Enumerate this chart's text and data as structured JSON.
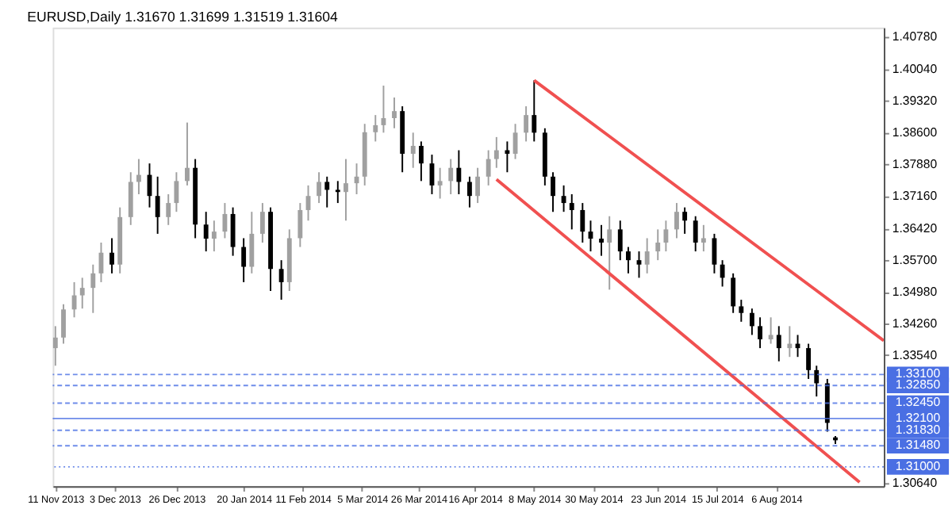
{
  "chart_data": {
    "type": "candlestick",
    "title": "EURUSD,Daily 1.31670 1.31699 1.31519 1.31604",
    "x": [
      "2013-11-11",
      "2013-11-14",
      "2013-11-18",
      "2013-11-21",
      "2013-11-25",
      "2013-11-28",
      "2013-12-02",
      "2013-12-05",
      "2013-12-09",
      "2013-12-12",
      "2013-12-16",
      "2013-12-19",
      "2013-12-23",
      "2013-12-26",
      "2013-12-30",
      "2014-01-02",
      "2014-01-06",
      "2014-01-09",
      "2014-01-13",
      "2014-01-16",
      "2014-01-20",
      "2014-01-23",
      "2014-01-27",
      "2014-01-30",
      "2014-02-03",
      "2014-02-06",
      "2014-02-10",
      "2014-02-13",
      "2014-02-17",
      "2014-02-20",
      "2014-02-24",
      "2014-02-27",
      "2014-03-03",
      "2014-03-06",
      "2014-03-10",
      "2014-03-13",
      "2014-03-17",
      "2014-03-20",
      "2014-03-24",
      "2014-03-27",
      "2014-03-31",
      "2014-04-03",
      "2014-04-07",
      "2014-04-10",
      "2014-04-14",
      "2014-04-17",
      "2014-04-21",
      "2014-04-24",
      "2014-04-28",
      "2014-05-01",
      "2014-05-05",
      "2014-05-08",
      "2014-05-12",
      "2014-05-15",
      "2014-05-19",
      "2014-05-22",
      "2014-05-26",
      "2014-05-29",
      "2014-06-02",
      "2014-06-05",
      "2014-06-09",
      "2014-06-12",
      "2014-06-16",
      "2014-06-19",
      "2014-06-23",
      "2014-06-26",
      "2014-06-30",
      "2014-07-03",
      "2014-07-07",
      "2014-07-10",
      "2014-07-14",
      "2014-07-17",
      "2014-07-21",
      "2014-07-24",
      "2014-07-28",
      "2014-07-31",
      "2014-08-04",
      "2014-08-07",
      "2014-08-11",
      "2014-08-14",
      "2014-08-18",
      "2014-08-21",
      "2014-08-25",
      "2014-08-28"
    ],
    "ohlc": [
      [
        1.337,
        1.342,
        1.333,
        1.3394
      ],
      [
        1.3394,
        1.347,
        1.338,
        1.3458
      ],
      [
        1.3458,
        1.352,
        1.344,
        1.349
      ],
      [
        1.349,
        1.353,
        1.346,
        1.3507
      ],
      [
        1.3507,
        1.356,
        1.345,
        1.354
      ],
      [
        1.354,
        1.361,
        1.352,
        1.3587
      ],
      [
        1.3587,
        1.362,
        1.354,
        1.356
      ],
      [
        1.356,
        1.369,
        1.354,
        1.3668
      ],
      [
        1.3668,
        1.377,
        1.365,
        1.3748
      ],
      [
        1.3748,
        1.38,
        1.372,
        1.3764
      ],
      [
        1.3764,
        1.379,
        1.369,
        1.3716
      ],
      [
        1.3716,
        1.376,
        1.363,
        1.3668
      ],
      [
        1.3668,
        1.372,
        1.365,
        1.37
      ],
      [
        1.37,
        1.377,
        1.368,
        1.375
      ],
      [
        1.375,
        1.3883,
        1.374,
        1.378
      ],
      [
        1.378,
        1.38,
        1.362,
        1.3651
      ],
      [
        1.3651,
        1.368,
        1.359,
        1.3619
      ],
      [
        1.3619,
        1.366,
        1.359,
        1.3635
      ],
      [
        1.3635,
        1.37,
        1.362,
        1.3675
      ],
      [
        1.3675,
        1.369,
        1.358,
        1.36
      ],
      [
        1.36,
        1.362,
        1.352,
        1.3555
      ],
      [
        1.3555,
        1.368,
        1.354,
        1.363
      ],
      [
        1.363,
        1.37,
        1.361,
        1.368
      ],
      [
        1.368,
        1.369,
        1.35,
        1.355
      ],
      [
        1.355,
        1.357,
        1.348,
        1.352
      ],
      [
        1.352,
        1.364,
        1.35,
        1.362
      ],
      [
        1.362,
        1.37,
        1.36,
        1.3684
      ],
      [
        1.3684,
        1.374,
        1.366,
        1.3716
      ],
      [
        1.3716,
        1.377,
        1.37,
        1.3748
      ],
      [
        1.3748,
        1.376,
        1.369,
        1.373
      ],
      [
        1.373,
        1.375,
        1.37,
        1.3725
      ],
      [
        1.3725,
        1.38,
        1.366,
        1.3745
      ],
      [
        1.3745,
        1.379,
        1.372,
        1.376
      ],
      [
        1.376,
        1.388,
        1.374,
        1.3861
      ],
      [
        1.3861,
        1.39,
        1.384,
        1.3877
      ],
      [
        1.3877,
        1.3967,
        1.386,
        1.3893
      ],
      [
        1.3893,
        1.394,
        1.387,
        1.3909
      ],
      [
        1.3909,
        1.392,
        1.377,
        1.3812
      ],
      [
        1.3812,
        1.386,
        1.378,
        1.383
      ],
      [
        1.383,
        1.384,
        1.375,
        1.379
      ],
      [
        1.379,
        1.381,
        1.372,
        1.374
      ],
      [
        1.374,
        1.378,
        1.371,
        1.375
      ],
      [
        1.375,
        1.38,
        1.372,
        1.378
      ],
      [
        1.378,
        1.382,
        1.372,
        1.3748
      ],
      [
        1.3748,
        1.376,
        1.369,
        1.3716
      ],
      [
        1.3716,
        1.378,
        1.37,
        1.376
      ],
      [
        1.376,
        1.382,
        1.374,
        1.38
      ],
      [
        1.38,
        1.385,
        1.378,
        1.382
      ],
      [
        1.382,
        1.384,
        1.377,
        1.3812
      ],
      [
        1.3812,
        1.388,
        1.38,
        1.386
      ],
      [
        1.386,
        1.392,
        1.384,
        1.39
      ],
      [
        1.39,
        1.3979,
        1.384,
        1.386
      ],
      [
        1.386,
        1.387,
        1.374,
        1.376
      ],
      [
        1.376,
        1.377,
        1.368,
        1.3716
      ],
      [
        1.3716,
        1.374,
        1.368,
        1.37
      ],
      [
        1.37,
        1.372,
        1.364,
        1.3684
      ],
      [
        1.3684,
        1.37,
        1.361,
        1.3635
      ],
      [
        1.3635,
        1.366,
        1.359,
        1.3619
      ],
      [
        1.3619,
        1.365,
        1.358,
        1.361
      ],
      [
        1.361,
        1.367,
        1.3503,
        1.364
      ],
      [
        1.364,
        1.366,
        1.357,
        1.359
      ],
      [
        1.359,
        1.36,
        1.354,
        1.357
      ],
      [
        1.357,
        1.359,
        1.353,
        1.356
      ],
      [
        1.356,
        1.362,
        1.354,
        1.359
      ],
      [
        1.359,
        1.364,
        1.357,
        1.361
      ],
      [
        1.361,
        1.366,
        1.359,
        1.364
      ],
      [
        1.364,
        1.37,
        1.362,
        1.368
      ],
      [
        1.368,
        1.369,
        1.363,
        1.366
      ],
      [
        1.366,
        1.367,
        1.359,
        1.361
      ],
      [
        1.361,
        1.365,
        1.359,
        1.362
      ],
      [
        1.362,
        1.363,
        1.354,
        1.356
      ],
      [
        1.356,
        1.357,
        1.351,
        1.353
      ],
      [
        1.353,
        1.354,
        1.345,
        1.3465
      ],
      [
        1.3465,
        1.348,
        1.343,
        1.345
      ],
      [
        1.345,
        1.346,
        1.34,
        1.342
      ],
      [
        1.342,
        1.344,
        1.337,
        1.339
      ],
      [
        1.339,
        1.344,
        1.338,
        1.34
      ],
      [
        1.34,
        1.342,
        1.334,
        1.337
      ],
      [
        1.337,
        1.342,
        1.335,
        1.338
      ],
      [
        1.338,
        1.34,
        1.335,
        1.337
      ],
      [
        1.337,
        1.338,
        1.33,
        1.332
      ],
      [
        1.332,
        1.333,
        1.326,
        1.329
      ],
      [
        1.329,
        1.33,
        1.318,
        1.32
      ],
      [
        1.3167,
        1.31699,
        1.31519,
        1.31604
      ]
    ],
    "colors": [
      "#a0a0a0",
      "#a0a0a0",
      "#a0a0a0",
      "#a0a0a0",
      "#a0a0a0",
      "#a0a0a0",
      "#000000",
      "#a0a0a0",
      "#a0a0a0",
      "#a0a0a0",
      "#000000",
      "#000000",
      "#a0a0a0",
      "#a0a0a0",
      "#a0a0a0",
      "#000000",
      "#000000",
      "#a0a0a0",
      "#a0a0a0",
      "#000000",
      "#000000",
      "#a0a0a0",
      "#a0a0a0",
      "#000000",
      "#000000",
      "#a0a0a0",
      "#a0a0a0",
      "#a0a0a0",
      "#a0a0a0",
      "#000000",
      "#000000",
      "#a0a0a0",
      "#a0a0a0",
      "#a0a0a0",
      "#a0a0a0",
      "#a0a0a0",
      "#a0a0a0",
      "#000000",
      "#a0a0a0",
      "#000000",
      "#000000",
      "#a0a0a0",
      "#a0a0a0",
      "#000000",
      "#000000",
      "#a0a0a0",
      "#a0a0a0",
      "#a0a0a0",
      "#000000",
      "#a0a0a0",
      "#a0a0a0",
      "#000000",
      "#000000",
      "#000000",
      "#000000",
      "#000000",
      "#000000",
      "#000000",
      "#000000",
      "#a0a0a0",
      "#000000",
      "#000000",
      "#000000",
      "#a0a0a0",
      "#a0a0a0",
      "#a0a0a0",
      "#a0a0a0",
      "#000000",
      "#000000",
      "#a0a0a0",
      "#000000",
      "#000000",
      "#000000",
      "#000000",
      "#000000",
      "#000000",
      "#a0a0a0",
      "#000000",
      "#a0a0a0",
      "#000000",
      "#000000",
      "#000000",
      "#000000",
      "#000000"
    ],
    "series": [
      {
        "type": "line",
        "color": "#f05050",
        "x": [
          "2014-05-08",
          "2014-09-15"
        ],
        "values": [
          1.3979,
          1.3387
        ]
      },
      {
        "type": "line",
        "color": "#f05050",
        "x": [
          "2014-04-24",
          "2014-09-06"
        ],
        "values": [
          1.3754,
          1.3065
        ]
      }
    ],
    "ref_lines": [
      {
        "axis": "y",
        "value": 1.331,
        "label": "1.33100",
        "color": "#4a6fe3",
        "line_style": "dashed"
      },
      {
        "axis": "y",
        "value": 1.3285,
        "label": "1.32850",
        "color": "#4a6fe3",
        "line_style": "dashed"
      },
      {
        "axis": "y",
        "value": 1.3245,
        "label": "1.32450",
        "color": "#4a6fe3",
        "line_style": "dashed"
      },
      {
        "axis": "y",
        "value": 1.321,
        "label": "1.32100",
        "color": "#4a6fe3",
        "line_style": "solid"
      },
      {
        "axis": "y",
        "value": 1.3183,
        "label": "1.31830",
        "color": "#4a6fe3",
        "line_style": "dashed"
      },
      {
        "axis": "y",
        "value": 1.3148,
        "label": "1.31480",
        "color": "#4a6fe3",
        "line_style": "dashed"
      },
      {
        "axis": "y",
        "value": 1.31,
        "label": "1.31000",
        "color": "#4a6fe3",
        "line_style": "dotted"
      }
    ],
    "xlim": [
      "2013-11-10",
      "2014-09-15"
    ],
    "xticks": [
      {
        "value": "2013-11-11",
        "label": "11 Nov 2013"
      },
      {
        "value": "2013-12-03",
        "label": "3 Dec 2013"
      },
      {
        "value": "2013-12-26",
        "label": "26 Dec 2013"
      },
      {
        "value": "2014-01-20",
        "label": "20 Jan 2014"
      },
      {
        "value": "2014-02-11",
        "label": "11 Feb 2014"
      },
      {
        "value": "2014-03-05",
        "label": "5 Mar 2014"
      },
      {
        "value": "2014-03-26",
        "label": "26 Mar 2014"
      },
      {
        "value": "2014-04-16",
        "label": "16 Apr 2014"
      },
      {
        "value": "2014-05-08",
        "label": "8 May 2014"
      },
      {
        "value": "2014-05-30",
        "label": "30 May 2014"
      },
      {
        "value": "2014-06-23",
        "label": "23 Jun 2014"
      },
      {
        "value": "2014-07-15",
        "label": "15 Jul 2014"
      },
      {
        "value": "2014-08-06",
        "label": "6 Aug 2014"
      }
    ],
    "ylim": [
      1.3056,
      1.4099
    ],
    "yticks": [
      {
        "value": 1.4078,
        "label": "1.40780"
      },
      {
        "value": 1.4004,
        "label": "1.40040"
      },
      {
        "value": 1.3932,
        "label": "1.39320"
      },
      {
        "value": 1.386,
        "label": "1.38600"
      },
      {
        "value": 1.3788,
        "label": "1.37880"
      },
      {
        "value": 1.3716,
        "label": "1.37160"
      },
      {
        "value": 1.3642,
        "label": "1.36420"
      },
      {
        "value": 1.357,
        "label": "1.35700"
      },
      {
        "value": 1.3498,
        "label": "1.34980"
      },
      {
        "value": 1.3426,
        "label": "1.34260"
      },
      {
        "value": 1.3354,
        "label": "1.33540"
      },
      {
        "value": 1.3064,
        "label": "1.30640"
      }
    ],
    "grid": false
  }
}
